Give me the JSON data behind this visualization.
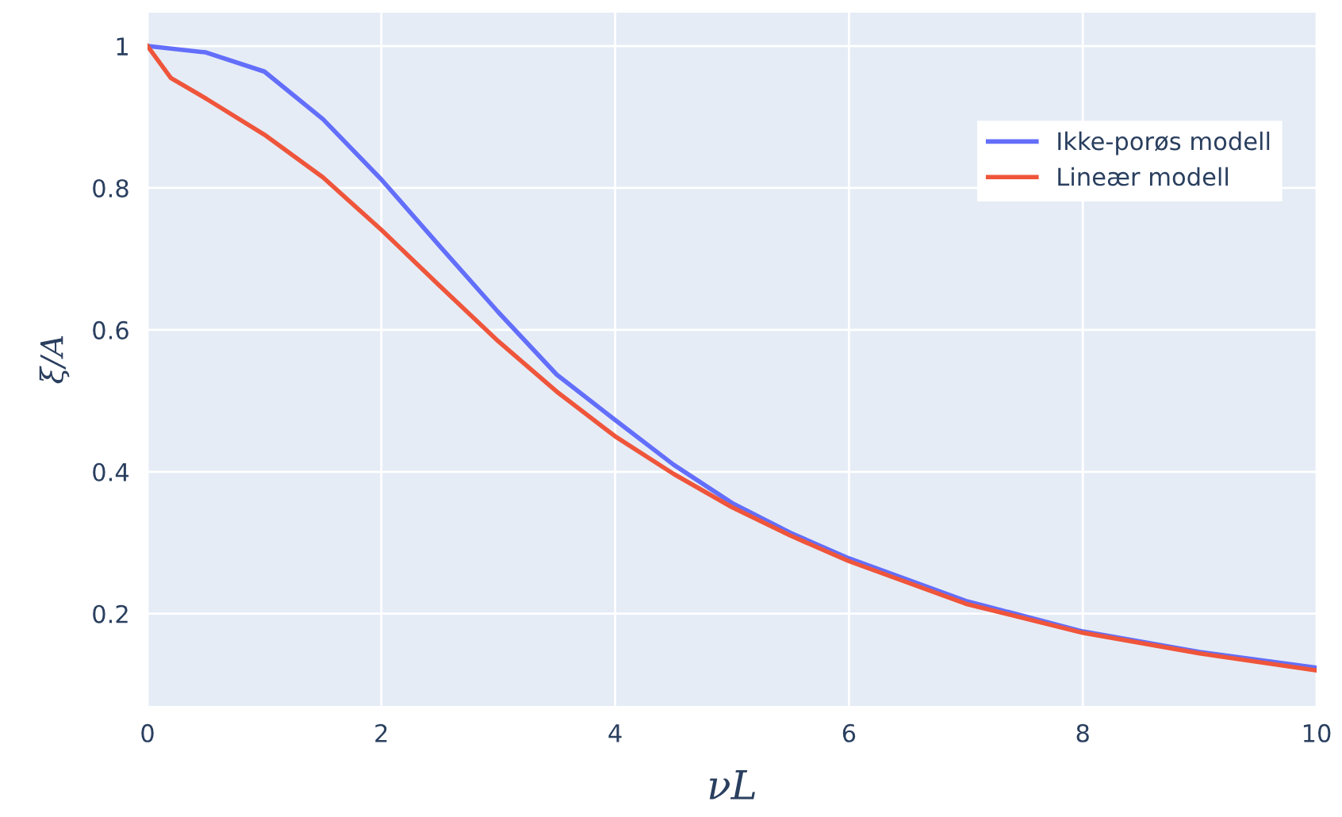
{
  "chart_data": {
    "type": "line",
    "xlabel": "νL",
    "ylabel": "ξ/A",
    "x": [
      0,
      0.5,
      1,
      1.5,
      2,
      2.5,
      3,
      3.5,
      4,
      4.5,
      5,
      5.5,
      6,
      7,
      8,
      9,
      10
    ],
    "series": [
      {
        "name": "Ikke-porøs modell",
        "color": "#636efa",
        "values": [
          1.0,
          0.991,
          0.964,
          0.897,
          0.812,
          0.718,
          0.625,
          0.537,
          0.473,
          0.41,
          0.356,
          0.314,
          0.278,
          0.218,
          0.175,
          0.146,
          0.124
        ]
      },
      {
        "name": "Lineær modell",
        "color": "#ef553b",
        "x": [
          0,
          0.2,
          0.5,
          1,
          1.5,
          2,
          2.5,
          3,
          3.5,
          4,
          4.5,
          5,
          5.5,
          6,
          7,
          8,
          9,
          10
        ],
        "values": [
          1.0,
          0.955,
          0.926,
          0.875,
          0.815,
          0.741,
          0.662,
          0.584,
          0.513,
          0.45,
          0.397,
          0.35,
          0.31,
          0.274,
          0.214,
          0.173,
          0.144,
          0.12
        ]
      }
    ],
    "xlim": [
      0,
      10
    ],
    "xticks": [
      0,
      2,
      4,
      6,
      8,
      10
    ],
    "ylim": [
      0.07,
      1.047
    ],
    "yticks": [
      0.2,
      0.4,
      0.6,
      0.8,
      1
    ],
    "grid": true,
    "legend": "top right",
    "line_style": "solid",
    "marker": "none"
  }
}
